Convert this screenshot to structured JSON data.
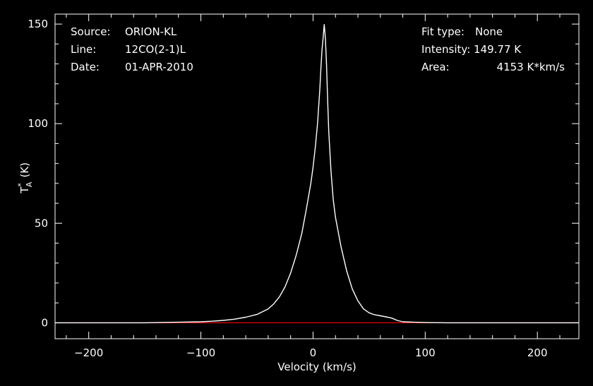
{
  "chart_data": {
    "type": "line",
    "xlabel": "Velocity (km/s)",
    "ylabel": "T",
    "ylabel_sub": "A",
    "ylabel_sup": "*",
    "ylabel_unit": "(K)",
    "xlim": [
      -230,
      237
    ],
    "ylim": [
      -8,
      155
    ],
    "x_ticks": [
      -200,
      -100,
      0,
      100,
      200
    ],
    "x_tick_labels": [
      "−200",
      "−100",
      "0",
      "100",
      "200"
    ],
    "y_ticks": [
      0,
      50,
      100,
      150
    ],
    "y_tick_labels": [
      "0",
      "50",
      "100",
      "150"
    ],
    "grid": false,
    "baseline": {
      "y": 0,
      "color": "#ff0000"
    },
    "series": [
      {
        "color": "#ffffff",
        "x": [
          -230,
          -200,
          -150,
          -120,
          -100,
          -90,
          -80,
          -70,
          -60,
          -50,
          -40,
          -35,
          -30,
          -25,
          -20,
          -15,
          -10,
          -6,
          -2,
          0,
          2,
          4,
          6,
          7,
          8,
          9,
          10,
          11,
          12,
          13,
          14,
          16,
          18,
          20,
          25,
          30,
          35,
          40,
          45,
          50,
          55,
          60,
          65,
          70,
          75,
          80,
          90,
          100,
          120,
          150,
          200,
          237
        ],
        "y": [
          0,
          0,
          0,
          0.3,
          0.5,
          0.8,
          1.2,
          1.8,
          2.8,
          4.2,
          7,
          9.5,
          13,
          18,
          25,
          34,
          45,
          57,
          70,
          78,
          88,
          100,
          117,
          128,
          137,
          143,
          149.8,
          143,
          130,
          112,
          96,
          76,
          62,
          53,
          38,
          26,
          17,
          11,
          7,
          5,
          4,
          3.5,
          3,
          2.4,
          1.2,
          0.5,
          0.3,
          0.1,
          0,
          0,
          0,
          0
        ]
      }
    ],
    "annotations": {
      "left": [
        {
          "label": "Source:",
          "value": "ORION-KL"
        },
        {
          "label": "Line:",
          "value": "12CO(2-1)L"
        },
        {
          "label": "Date:",
          "value": "01-APR-2010"
        }
      ],
      "right": [
        {
          "label": "Fit type:",
          "value": "None"
        },
        {
          "label": "Intensity:",
          "value": "149.77 K"
        },
        {
          "label": "Area:",
          "value": "4153 K*km/s"
        }
      ]
    }
  }
}
